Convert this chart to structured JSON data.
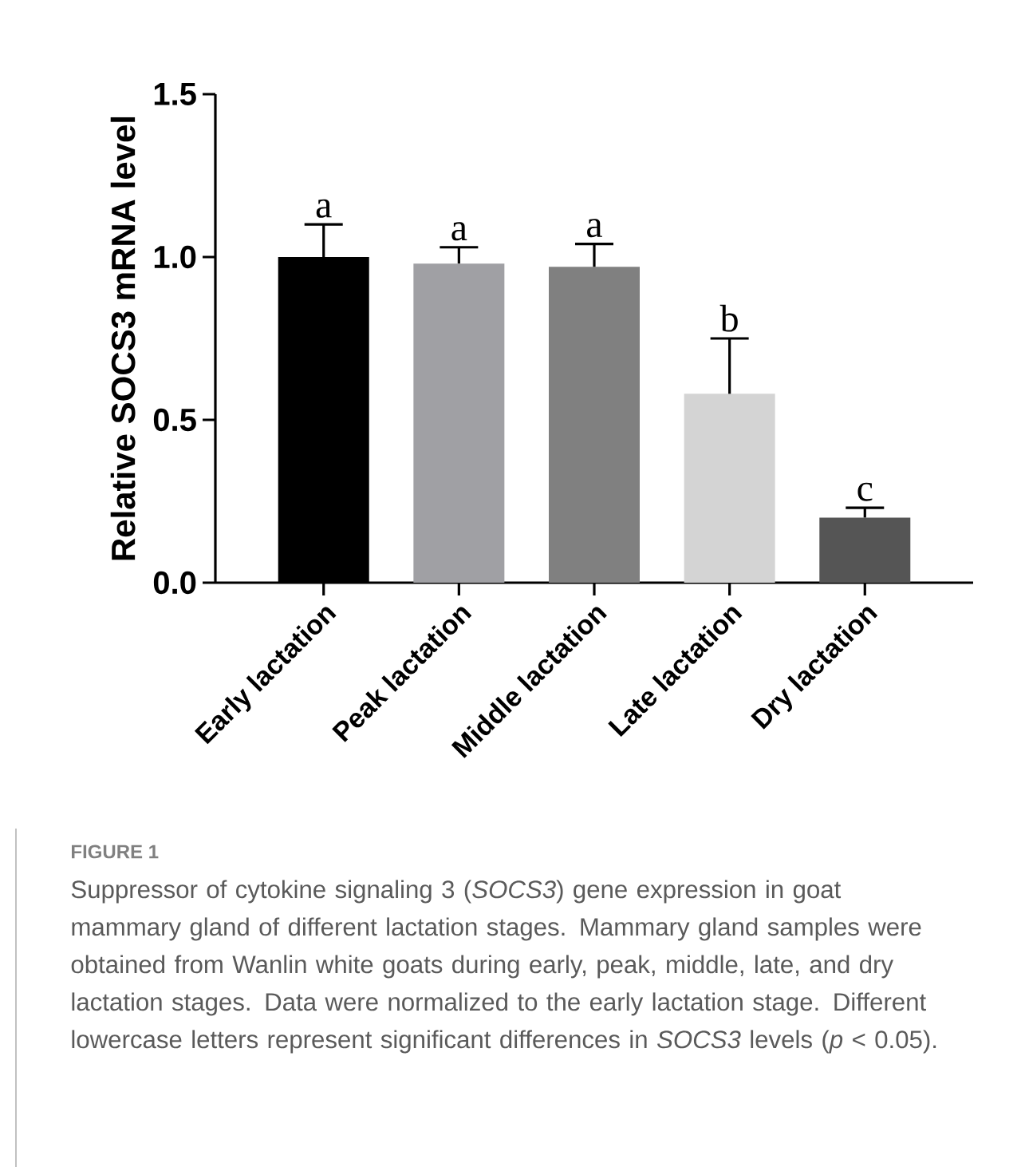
{
  "chart_data": {
    "type": "bar",
    "ylabel": "Relative SOCS3 mRNA level",
    "categories": [
      "Early lactation",
      "Peak lactation",
      "Middle lactation",
      "Late lactation",
      "Dry lactation"
    ],
    "values": [
      1.0,
      0.98,
      0.97,
      0.58,
      0.2
    ],
    "errors": [
      0.1,
      0.05,
      0.07,
      0.17,
      0.03
    ],
    "colors": [
      "#000000",
      "#a0a0a4",
      "#808080",
      "#d4d4d4",
      "#555555"
    ],
    "ylim": [
      0,
      1.5
    ],
    "yticks": [
      {
        "value": 0,
        "label": "0.0"
      },
      {
        "value": 0.5,
        "label": "0.5"
      },
      {
        "value": 1,
        "label": "1.0"
      },
      {
        "value": 1.5,
        "label": "1.5"
      }
    ],
    "annotations": [
      {
        "text": "a",
        "x": "Early lactation",
        "y": 1.1
      },
      {
        "text": "a",
        "x": "Peak lactation",
        "y": 1.03
      },
      {
        "text": "a",
        "x": "Middle lactation",
        "y": 1.04
      },
      {
        "text": "b",
        "x": "Late lactation",
        "y": 0.75
      },
      {
        "text": "c",
        "x": "Dry lactation",
        "y": 0.23
      },
      "FIGURE 1",
      "Suppressor of cytokine signaling 3 (*SOCS3*) gene expression in goat mammary gland of different lactation stages. Mammary gland samples were obtained from Wanlin white goats during early, peak, middle, late, and dry lactation stages. Data were normalized to the early lactation stage. Different lowercase letters represent significant differences in *SOCS3* levels (*p* < 0.05)."
    ]
  }
}
